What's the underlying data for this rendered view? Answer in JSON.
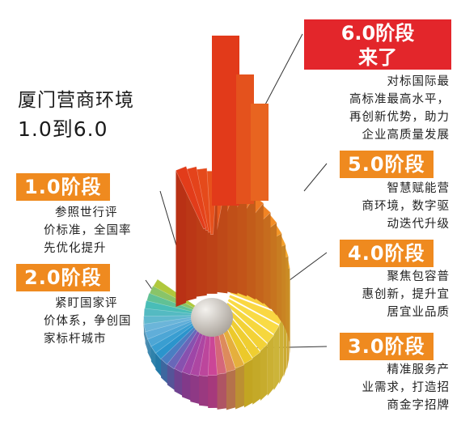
{
  "title": {
    "line1": "厦门营商环境",
    "line2": "1.0到6.0"
  },
  "stages": [
    {
      "key": "s1",
      "badge": "1.0阶段",
      "lines": [
        "参照世行评",
        "价标准，全国率",
        "先优化提升"
      ]
    },
    {
      "key": "s2",
      "badge": "2.0阶段",
      "lines": [
        "紧盯国家评",
        "价体系，争创国",
        "家标杆城市"
      ]
    },
    {
      "key": "s3",
      "badge": "3.0阶段",
      "lines": [
        "精准服务产",
        "业需求，打造招",
        "商金字招牌"
      ]
    },
    {
      "key": "s4",
      "badge": "4.0阶段",
      "lines": [
        "聚焦包容普",
        "惠创新，提升宜",
        "居宜业品质"
      ]
    },
    {
      "key": "s5",
      "badge": "5.0阶段",
      "lines": [
        "智慧赋能营",
        "商环境，数字驱",
        "动迭代升级"
      ]
    },
    {
      "key": "s6",
      "badge_line1": "6.0阶段",
      "badge_line2": "来了",
      "lines": [
        "对标国际最",
        "高标准最高水平，",
        "再创新优势，助力",
        "企业高质量发展"
      ]
    }
  ],
  "colors": {
    "badge": "#ef8a1f",
    "badge_top": "#e3262b",
    "spiral_start": "#c9d33a",
    "spiral_end": "#e8431c"
  }
}
